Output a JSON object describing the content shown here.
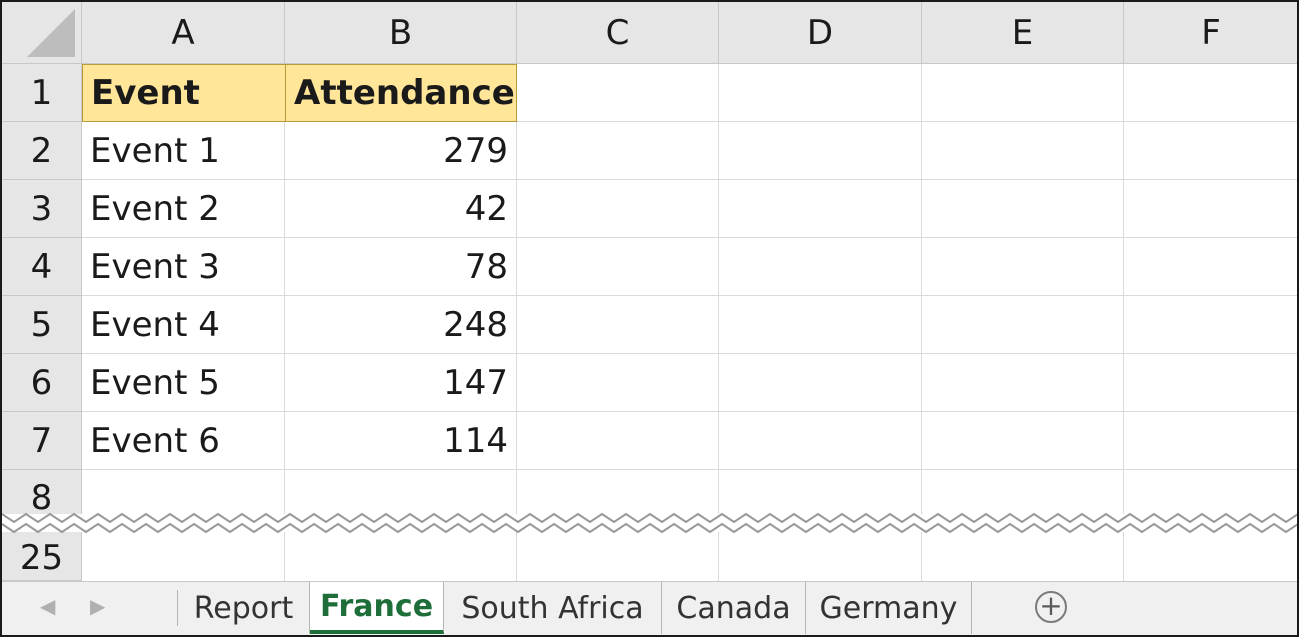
{
  "columns": [
    "A",
    "B",
    "C",
    "D",
    "E",
    "F"
  ],
  "row_labels": [
    "1",
    "2",
    "3",
    "4",
    "5",
    "6",
    "7",
    "8",
    "25"
  ],
  "table": {
    "headers": [
      "Event",
      "Attendance"
    ],
    "rows": [
      [
        "Event 1",
        "279"
      ],
      [
        "Event 2",
        "42"
      ],
      [
        "Event 3",
        "78"
      ],
      [
        "Event 4",
        "248"
      ],
      [
        "Event 5",
        "147"
      ],
      [
        "Event 6",
        "114"
      ]
    ]
  },
  "sheet_tabs": [
    "Report",
    "France",
    "South Africa",
    "Canada",
    "Germany"
  ],
  "active_tab": "France",
  "icons": {
    "scroll_left": "chevron-left-icon",
    "scroll_right": "chevron-right-icon",
    "new_sheet": "plus-circle-icon",
    "select_all": "select-all-triangle-icon"
  },
  "colors": {
    "header_fill": "#ffe699",
    "active_tab_text": "#1e6e3a",
    "grid_header": "#e6e6e6"
  }
}
